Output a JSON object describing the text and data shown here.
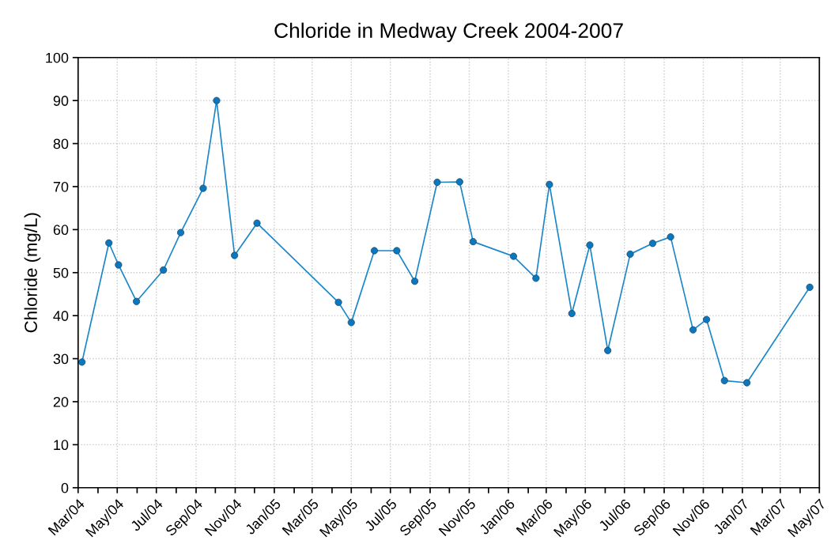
{
  "chart_data": {
    "type": "line",
    "title": "Chloride in Medway Creek 2004-2007",
    "ylabel": "Chloride (mg/L)",
    "x": [
      "2004-03-07",
      "2004-04-18",
      "2004-05-03",
      "2004-05-31",
      "2004-07-12",
      "2004-08-08",
      "2004-09-12",
      "2004-10-03",
      "2004-10-31",
      "2004-12-05",
      "2005-04-11",
      "2005-05-01",
      "2005-06-06",
      "2005-07-11",
      "2005-08-08",
      "2005-09-12",
      "2005-10-17",
      "2005-11-07",
      "2006-01-09",
      "2006-02-13",
      "2006-03-06",
      "2006-04-10",
      "2006-05-08",
      "2006-06-05",
      "2006-07-10",
      "2006-08-14",
      "2006-09-11",
      "2006-10-16",
      "2006-11-06",
      "2006-12-04",
      "2007-01-08",
      "2007-04-16"
    ],
    "series": [
      {
        "color": "#1a87c9",
        "values": [
          29.2,
          56.9,
          51.8,
          43.3,
          50.6,
          59.3,
          69.6,
          90.0,
          54.0,
          61.5,
          43.1,
          38.4,
          55.1,
          55.1,
          48.0,
          71.0,
          71.1,
          57.2,
          53.8,
          48.7,
          70.5,
          40.5,
          56.4,
          31.9,
          54.3,
          56.8,
          58.3,
          36.7,
          39.1,
          24.9,
          24.4,
          46.6
        ]
      }
    ],
    "xlim": [
      "2004-03-01",
      "2007-05-01"
    ],
    "xticks": [
      {
        "value": "2004-03-01",
        "label": "Mar/04"
      },
      {
        "value": "2004-04-01",
        "label": null
      },
      {
        "value": "2004-05-01",
        "label": "May/04"
      },
      {
        "value": "2004-06-01",
        "label": null
      },
      {
        "value": "2004-07-01",
        "label": "Jul/04"
      },
      {
        "value": "2004-08-01",
        "label": null
      },
      {
        "value": "2004-09-01",
        "label": "Sep/04"
      },
      {
        "value": "2004-10-01",
        "label": null
      },
      {
        "value": "2004-11-01",
        "label": "Nov/04"
      },
      {
        "value": "2004-12-01",
        "label": null
      },
      {
        "value": "2005-01-01",
        "label": "Jan/05"
      },
      {
        "value": "2005-02-01",
        "label": null
      },
      {
        "value": "2005-03-01",
        "label": "Mar/05"
      },
      {
        "value": "2005-04-01",
        "label": null
      },
      {
        "value": "2005-05-01",
        "label": "May/05"
      },
      {
        "value": "2005-06-01",
        "label": null
      },
      {
        "value": "2005-07-01",
        "label": "Jul/05"
      },
      {
        "value": "2005-08-01",
        "label": null
      },
      {
        "value": "2005-09-01",
        "label": "Sep/05"
      },
      {
        "value": "2005-10-01",
        "label": null
      },
      {
        "value": "2005-11-01",
        "label": "Nov/05"
      },
      {
        "value": "2005-12-01",
        "label": null
      },
      {
        "value": "2006-01-01",
        "label": "Jan/06"
      },
      {
        "value": "2006-02-01",
        "label": null
      },
      {
        "value": "2006-03-01",
        "label": "Mar/06"
      },
      {
        "value": "2006-04-01",
        "label": null
      },
      {
        "value": "2006-05-01",
        "label": "May/06"
      },
      {
        "value": "2006-06-01",
        "label": null
      },
      {
        "value": "2006-07-01",
        "label": "Jul/06"
      },
      {
        "value": "2006-08-01",
        "label": null
      },
      {
        "value": "2006-09-01",
        "label": "Sep/06"
      },
      {
        "value": "2006-10-01",
        "label": null
      },
      {
        "value": "2006-11-01",
        "label": "Nov/06"
      },
      {
        "value": "2006-12-01",
        "label": null
      },
      {
        "value": "2007-01-01",
        "label": "Jan/07"
      },
      {
        "value": "2007-02-01",
        "label": null
      },
      {
        "value": "2007-03-01",
        "label": "Mar/07"
      },
      {
        "value": "2007-04-01",
        "label": null
      },
      {
        "value": "2007-05-01",
        "label": "May/07"
      }
    ],
    "ylim": [
      0,
      100
    ],
    "yticks": [
      0,
      10,
      20,
      30,
      40,
      50,
      60,
      70,
      80,
      90,
      100
    ],
    "grid": true,
    "marker": "circle",
    "line_style": "solid"
  }
}
